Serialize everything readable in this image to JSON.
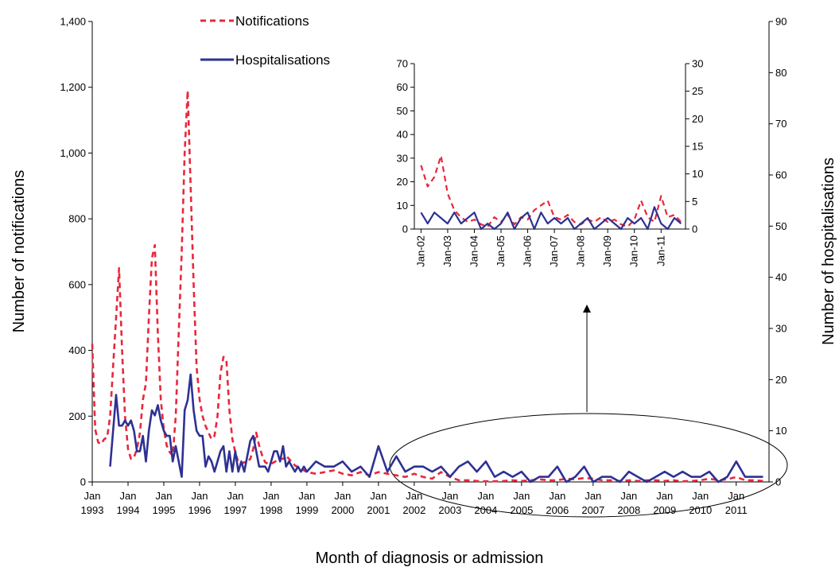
{
  "chart_data": [
    {
      "type": "line",
      "x_label": "Month of diagnosis or admission",
      "y_label": "Number of notifications",
      "y2_label": "Number of hospitalisations",
      "legend": "upper left",
      "x": [
        "1993-01",
        "1993-02",
        "1993-03",
        "1993-04",
        "1993-05",
        "1993-06",
        "1993-07",
        "1993-08",
        "1993-09",
        "1993-10",
        "1993-11",
        "1993-12",
        "1994-01",
        "1994-02",
        "1994-03",
        "1994-04",
        "1994-05",
        "1994-06",
        "1994-07",
        "1994-08",
        "1994-09",
        "1994-10",
        "1994-11",
        "1994-12",
        "1995-01",
        "1995-02",
        "1995-03",
        "1995-04",
        "1995-05",
        "1995-06",
        "1995-07",
        "1995-08",
        "1995-09",
        "1995-10",
        "1995-11",
        "1995-12",
        "1996-01",
        "1996-02",
        "1996-03",
        "1996-04",
        "1996-05",
        "1996-06",
        "1996-07",
        "1996-08",
        "1996-09",
        "1996-10",
        "1996-11",
        "1996-12",
        "1997-01",
        "1997-02",
        "1997-03",
        "1997-04",
        "1997-05",
        "1997-06",
        "1997-07",
        "1997-08",
        "1997-09",
        "1997-10",
        "1997-11",
        "1997-12",
        "1998-01",
        "1998-02",
        "1998-03",
        "1998-04",
        "1998-05",
        "1998-06",
        "1998-07",
        "1998-08",
        "1998-09",
        "1998-10",
        "1998-11",
        "1998-12",
        "1999-01",
        "1999-04",
        "1999-07",
        "1999-10",
        "2000-01",
        "2000-04",
        "2000-07",
        "2000-10",
        "2001-01",
        "2001-04",
        "2001-07",
        "2001-10",
        "2002-01",
        "2002-04",
        "2002-07",
        "2002-10",
        "2003-01",
        "2003-04",
        "2003-07",
        "2003-10",
        "2004-01",
        "2004-04",
        "2004-07",
        "2004-10",
        "2005-01",
        "2005-04",
        "2005-07",
        "2005-10",
        "2006-01",
        "2006-04",
        "2006-07",
        "2006-10",
        "2007-01",
        "2007-04",
        "2007-07",
        "2007-10",
        "2008-01",
        "2008-04",
        "2008-07",
        "2008-10",
        "2009-01",
        "2009-04",
        "2009-07",
        "2009-10",
        "2010-01",
        "2010-04",
        "2010-07",
        "2010-10",
        "2011-01",
        "2011-04",
        "2011-07",
        "2011-10"
      ],
      "series": [
        {
          "name": "Notifications",
          "color": "#e8283c",
          "dash": "dashed",
          "values": [
            420,
            160,
            120,
            115,
            130,
            135,
            200,
            350,
            500,
            650,
            400,
            200,
            100,
            70,
            75,
            100,
            150,
            250,
            300,
            500,
            680,
            720,
            450,
            250,
            160,
            110,
            90,
            80,
            200,
            450,
            700,
            1000,
            1190,
            900,
            600,
            350,
            250,
            200,
            170,
            150,
            130,
            140,
            200,
            330,
            380,
            370,
            220,
            130,
            90,
            60,
            55,
            60,
            60,
            70,
            100,
            150,
            110,
            80,
            60,
            55,
            55,
            60,
            65,
            70,
            70,
            80,
            70,
            60,
            50,
            45,
            40,
            35,
            30,
            25,
            30,
            35,
            25,
            20,
            30,
            20,
            30,
            25,
            20,
            15,
            25,
            15,
            10,
            30,
            15,
            5,
            5,
            3,
            2,
            2,
            3,
            5,
            3,
            5,
            8,
            5,
            5,
            10,
            8,
            12,
            10,
            5,
            5,
            3,
            5,
            3,
            5,
            5,
            3,
            5,
            2,
            3,
            5,
            10,
            5,
            8,
            15,
            5,
            5,
            3
          ]
        },
        {
          "name": "Hospitalisations",
          "color": "#2e3192",
          "dash": "solid",
          "axis": "y2",
          "values": [
            null,
            null,
            null,
            null,
            null,
            null,
            3,
            10,
            17,
            11,
            11,
            12,
            11,
            12,
            10,
            6,
            6,
            9,
            4,
            10,
            14,
            13,
            15,
            12,
            10,
            9,
            9,
            4,
            7,
            4,
            1,
            14,
            16,
            21,
            14,
            10,
            9,
            9,
            3,
            5,
            4,
            2,
            4,
            6,
            7,
            2,
            6,
            2,
            6,
            2,
            4,
            2,
            5,
            8,
            9,
            6,
            3,
            3,
            3,
            2,
            4,
            6,
            6,
            4,
            7,
            3,
            4,
            3,
            2,
            3,
            2,
            3,
            2,
            4,
            3,
            3,
            4,
            2,
            3,
            1,
            7,
            2,
            5,
            2,
            3,
            3,
            2,
            3,
            1,
            3,
            4,
            2,
            4,
            1,
            2,
            1,
            2,
            0,
            1,
            1,
            3,
            0,
            1,
            3,
            0,
            1,
            1,
            0,
            2,
            1,
            0,
            1,
            2,
            1,
            2,
            1,
            1,
            2,
            0,
            1,
            4,
            1,
            1,
            1
          ]
        }
      ],
      "xlim": [
        "1993-01",
        "2011-12"
      ],
      "xticks": [
        {
          "value": "1993-01",
          "label": "Jan 1993"
        },
        {
          "value": "1994-01",
          "label": "Jan 1994"
        },
        {
          "value": "1995-01",
          "label": "Jan 1995"
        },
        {
          "value": "1996-01",
          "label": "Jan 1996"
        },
        {
          "value": "1997-01",
          "label": "Jan 1997"
        },
        {
          "value": "1998-01",
          "label": "Jan 1998"
        },
        {
          "value": "1999-01",
          "label": "Jan 1999"
        },
        {
          "value": "2000-01",
          "label": "Jan 2000"
        },
        {
          "value": "2001-01",
          "label": "Jan 2001"
        },
        {
          "value": "2002-01",
          "label": "Jan 2002"
        },
        {
          "value": "2003-01",
          "label": "Jan 2003"
        },
        {
          "value": "2004-01",
          "label": "Jan 2004"
        },
        {
          "value": "2005-01",
          "label": "Jan 2005"
        },
        {
          "value": "2006-01",
          "label": "Jan 2006"
        },
        {
          "value": "2007-01",
          "label": "Jan 2007"
        },
        {
          "value": "2008-01",
          "label": "Jan 2008"
        },
        {
          "value": "2009-01",
          "label": "Jan 2009"
        },
        {
          "value": "2010-01",
          "label": "Jan 2010"
        },
        {
          "value": "2011-01",
          "label": "Jan 2011"
        }
      ],
      "ylim": [
        0,
        1400
      ],
      "yticks": [
        0,
        200,
        400,
        600,
        800,
        {
          "value": 1000,
          "label": "1,000"
        },
        {
          "value": 1200,
          "label": "1,200"
        },
        {
          "value": 1400,
          "label": "1,400"
        }
      ],
      "y2lim": [
        0,
        90
      ],
      "y2ticks": [
        0,
        10,
        20,
        30,
        40,
        50,
        60,
        70,
        80,
        90
      ]
    },
    {
      "type": "line",
      "x": [
        "2002-01",
        "2002-04",
        "2002-07",
        "2002-10",
        "2003-01",
        "2003-04",
        "2003-07",
        "2003-10",
        "2004-01",
        "2004-04",
        "2004-07",
        "2004-10",
        "2005-01",
        "2005-04",
        "2005-07",
        "2005-10",
        "2006-01",
        "2006-04",
        "2006-07",
        "2006-10",
        "2007-01",
        "2007-04",
        "2007-07",
        "2007-10",
        "2008-01",
        "2008-04",
        "2008-07",
        "2008-10",
        "2009-01",
        "2009-04",
        "2009-07",
        "2009-10",
        "2010-01",
        "2010-04",
        "2010-07",
        "2010-10",
        "2011-01",
        "2011-04",
        "2011-07",
        "2011-10"
      ],
      "series": [
        {
          "color": "#e8283c",
          "dash": "dashed",
          "values": [
            27,
            18,
            22,
            31,
            15,
            8,
            5,
            3,
            4,
            2,
            1,
            5,
            3,
            6,
            2,
            5,
            4,
            8,
            10,
            12,
            5,
            4,
            6,
            3,
            2,
            4,
            3,
            5,
            3,
            4,
            2,
            1,
            4,
            12,
            5,
            3,
            14,
            5,
            6,
            3
          ]
        },
        {
          "color": "#2e3192",
          "dash": "solid",
          "axis": "y2",
          "values": [
            3,
            1,
            3,
            2,
            1,
            3,
            1,
            2,
            3,
            0,
            1,
            0,
            1,
            3,
            0,
            2,
            3,
            0,
            3,
            1,
            2,
            1,
            2,
            0,
            1,
            2,
            0,
            1,
            2,
            1,
            0,
            2,
            1,
            2,
            0,
            4,
            1,
            0,
            2,
            1
          ]
        }
      ],
      "xlim": [
        "2001-10",
        "2011-12"
      ],
      "xticks": [
        {
          "value": "2002-01",
          "label": "Jan-02"
        },
        {
          "value": "2003-01",
          "label": "Jan-03"
        },
        {
          "value": "2004-01",
          "label": "Jan-04"
        },
        {
          "value": "2005-01",
          "label": "Jan-05"
        },
        {
          "value": "2006-01",
          "label": "Jan-06"
        },
        {
          "value": "2007-01",
          "label": "Jan-07"
        },
        {
          "value": "2008-01",
          "label": "Jan-08"
        },
        {
          "value": "2009-01",
          "label": "Jan-09"
        },
        {
          "value": "2010-01",
          "label": "Jan-10"
        },
        {
          "value": "2011-01",
          "label": "Jan-11"
        }
      ],
      "ylim": [
        0,
        70
      ],
      "yticks": [
        0,
        10,
        20,
        30,
        40,
        50,
        60,
        70
      ],
      "y2lim": [
        0,
        30
      ],
      "y2ticks": [
        0,
        5,
        10,
        15,
        20,
        25,
        30
      ]
    }
  ]
}
